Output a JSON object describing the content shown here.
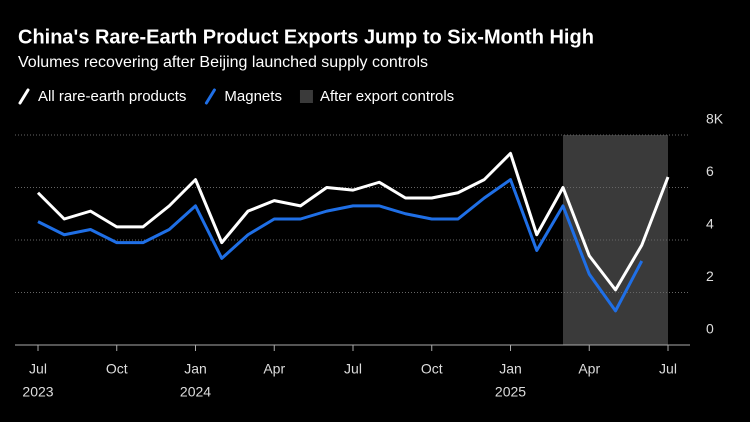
{
  "chart_data": {
    "type": "line",
    "title": "China's Rare-Earth Product Exports Jump to Six-Month High",
    "subtitle": "Volumes recovering after Beijing launched supply controls",
    "x": [
      "2023-07",
      "2023-08",
      "2023-09",
      "2023-10",
      "2023-11",
      "2023-12",
      "2024-01",
      "2024-02",
      "2024-03",
      "2024-04",
      "2024-05",
      "2024-06",
      "2024-07",
      "2024-08",
      "2024-09",
      "2024-10",
      "2024-11",
      "2024-12",
      "2025-01",
      "2025-02",
      "2025-03",
      "2025-04",
      "2025-05",
      "2025-06",
      "2025-07"
    ],
    "series": [
      {
        "name": "All rare-earth products",
        "color": "#ffffff",
        "values": [
          5.8,
          4.8,
          5.1,
          4.5,
          4.5,
          5.3,
          6.3,
          3.9,
          5.1,
          5.5,
          5.3,
          6.0,
          5.9,
          6.2,
          5.6,
          5.6,
          5.8,
          6.3,
          7.3,
          4.2,
          6.0,
          3.4,
          2.1,
          3.8,
          6.4
        ]
      },
      {
        "name": "Magnets",
        "color": "#1f6fe6",
        "values": [
          4.7,
          4.2,
          4.4,
          3.9,
          3.9,
          4.4,
          5.3,
          3.3,
          4.2,
          4.8,
          4.8,
          5.1,
          5.3,
          5.3,
          5.0,
          4.8,
          4.8,
          5.6,
          6.3,
          3.6,
          5.3,
          2.7,
          1.3,
          3.2,
          null
        ]
      }
    ],
    "shaded_span": {
      "label": "After export controls",
      "from": "2025-03",
      "to": "2025-07",
      "color": "#3a3a3a"
    },
    "ylim": [
      0,
      8
    ],
    "yticks": [
      0,
      2,
      4,
      6,
      {
        "value": 8,
        "label": "8K"
      }
    ],
    "xticks": [
      {
        "value": "2023-07",
        "label": "Jul"
      },
      {
        "value": "2023-10",
        "label": "Oct"
      },
      {
        "value": "2024-01",
        "label": "Jan"
      },
      {
        "value": "2024-04",
        "label": "Apr"
      },
      {
        "value": "2024-07",
        "label": "Jul"
      },
      {
        "value": "2024-10",
        "label": "Oct"
      },
      {
        "value": "2025-01",
        "label": "Jan"
      },
      {
        "value": "2025-04",
        "label": "Apr"
      },
      {
        "value": "2025-07",
        "label": "Jul"
      }
    ],
    "xyears": [
      {
        "value": "2023-07",
        "label": "2023"
      },
      {
        "value": "2024-01",
        "label": "2024"
      },
      {
        "value": "2025-01",
        "label": "2025"
      }
    ],
    "grid": true
  }
}
